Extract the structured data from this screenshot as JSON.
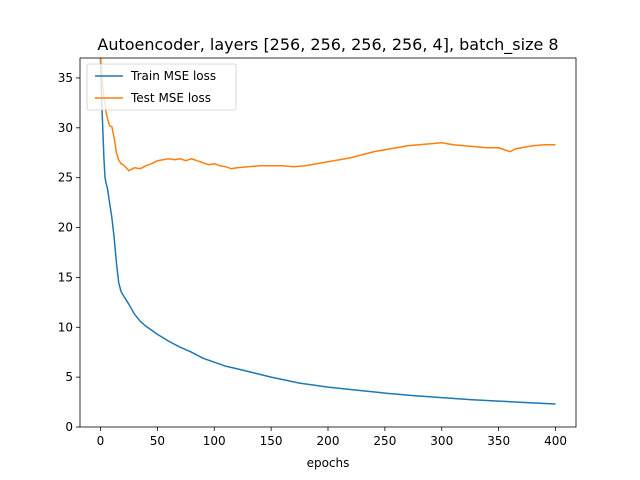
{
  "chart_data": {
    "type": "line",
    "title": "Autoencoder, layers [256, 256, 256, 256, 4], batch_size 8",
    "xlabel": "epochs",
    "ylabel": "",
    "xlim": [
      -18,
      418
    ],
    "ylim": [
      0,
      37
    ],
    "xticks": [
      0,
      50,
      100,
      150,
      200,
      250,
      300,
      350,
      400
    ],
    "yticks": [
      0,
      5,
      10,
      15,
      20,
      25,
      30,
      35
    ],
    "grid": false,
    "legend_position": "upper left",
    "series": [
      {
        "name": "Train MSE loss",
        "color": "#1f77b4",
        "x": [
          0,
          1,
          2,
          3,
          4,
          5,
          6,
          8,
          10,
          12,
          14,
          16,
          18,
          20,
          25,
          30,
          35,
          40,
          50,
          60,
          70,
          80,
          90,
          100,
          110,
          125,
          150,
          175,
          200,
          225,
          250,
          275,
          300,
          325,
          350,
          375,
          400
        ],
        "y": [
          37,
          33,
          30,
          27,
          25,
          24.4,
          24,
          22.5,
          21,
          19,
          16.5,
          14.5,
          13.6,
          13.2,
          12.3,
          11.3,
          10.6,
          10.1,
          9.3,
          8.6,
          8.0,
          7.5,
          6.9,
          6.5,
          6.1,
          5.7,
          5.0,
          4.4,
          4.0,
          3.7,
          3.4,
          3.15,
          2.95,
          2.75,
          2.6,
          2.45,
          2.3
        ]
      },
      {
        "name": "Test MSE loss",
        "color": "#ff7f0e",
        "x": [
          0,
          1,
          2,
          3,
          4,
          5,
          6,
          8,
          10,
          12,
          14,
          16,
          18,
          20,
          25,
          30,
          35,
          40,
          45,
          50,
          55,
          60,
          65,
          70,
          75,
          80,
          85,
          90,
          95,
          100,
          105,
          110,
          115,
          120,
          130,
          140,
          150,
          160,
          170,
          180,
          190,
          200,
          210,
          220,
          230,
          240,
          250,
          260,
          270,
          280,
          290,
          300,
          310,
          320,
          330,
          340,
          350,
          355,
          360,
          365,
          370,
          380,
          390,
          400
        ],
        "y": [
          37,
          36,
          34,
          33,
          32.5,
          31.5,
          31,
          30.2,
          30.1,
          29,
          27.5,
          26.8,
          26.4,
          26.3,
          25.7,
          26.0,
          25.9,
          26.2,
          26.4,
          26.7,
          26.8,
          26.9,
          26.8,
          26.9,
          26.7,
          26.9,
          26.7,
          26.5,
          26.3,
          26.4,
          26.2,
          26.1,
          25.9,
          26.0,
          26.1,
          26.2,
          26.2,
          26.2,
          26.1,
          26.2,
          26.4,
          26.6,
          26.8,
          27.0,
          27.3,
          27.6,
          27.8,
          28.0,
          28.2,
          28.3,
          28.4,
          28.5,
          28.3,
          28.2,
          28.1,
          28.0,
          28.0,
          27.8,
          27.6,
          27.9,
          28.0,
          28.2,
          28.3,
          28.3
        ]
      }
    ]
  }
}
